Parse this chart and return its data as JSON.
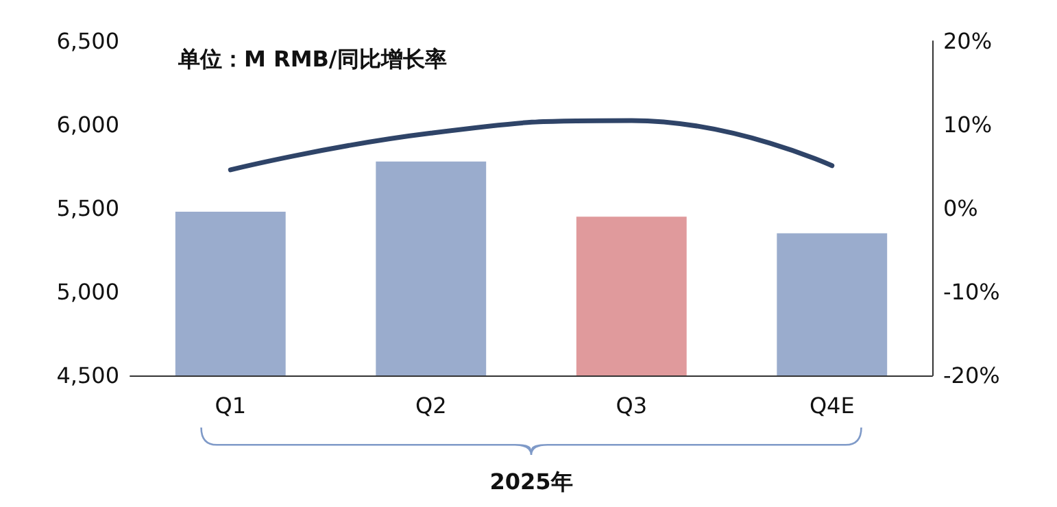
{
  "chart_data": {
    "type": "bar",
    "title": "单位：M RMB/同比增长率",
    "categories": [
      "Q1",
      "Q2",
      "Q3",
      "Q4E"
    ],
    "series": [
      {
        "colors": [
          "#9aaccd",
          "#9aaccd",
          "#e09a9c",
          "#9aaccd"
        ],
        "values": [
          5480,
          5780,
          5450,
          5350
        ]
      },
      {
        "type": "line",
        "axis": "y2",
        "color": "#2f4468",
        "values": [
          4.6,
          9.0,
          10.5,
          5.1
        ]
      }
    ],
    "ylim": [
      4500,
      6500
    ],
    "yticks": [
      {
        "value": 4500,
        "label": "4,500"
      },
      {
        "value": 5000,
        "label": "5,000"
      },
      {
        "value": 5500,
        "label": "5,500"
      },
      {
        "value": 6000,
        "label": "6,000"
      },
      {
        "value": 6500,
        "label": "6,500"
      }
    ],
    "y2lim": [
      -20,
      20
    ],
    "y2ticks": [
      {
        "value": -20,
        "label": "-20%"
      },
      {
        "value": -10,
        "label": "-10%"
      },
      {
        "value": 0,
        "label": "0%"
      },
      {
        "value": 10,
        "label": "10%"
      },
      {
        "value": 20,
        "label": "20%"
      }
    ],
    "annotations": [
      "2025年"
    ],
    "grid": false,
    "marker": "none",
    "line_style": "solid"
  }
}
